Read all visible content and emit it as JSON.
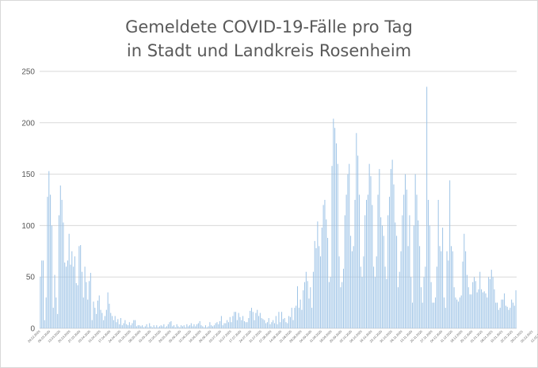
{
  "chart_data": {
    "type": "bar",
    "title": "Gemeldete COVID-19-Fälle pro Tag",
    "subtitle": "in Stadt und Landkreis Rosenheim",
    "xlabel": "",
    "ylabel": "",
    "ylim": [
      0,
      250
    ],
    "yticks": [
      0,
      50,
      100,
      150,
      200,
      250
    ],
    "grid": true,
    "bar_color": "#9dc3e6",
    "grid_color": "#d9d9d9",
    "text_color": "#595959",
    "x_tick_labels": [
      "29.02.2020",
      "06.03.2020",
      "13.03.2020",
      "20.03.2020",
      "27.03.2020",
      "03.04.2020",
      "10.04.2020",
      "17.04.2020",
      "24.04.2020",
      "01.05.2020",
      "08.05.2020",
      "15.05.2020",
      "22.05.2020",
      "29.05.2020",
      "05.06.2020",
      "12.06.2020",
      "19.06.2020",
      "26.06.2020",
      "03.07.2020",
      "10.07.2020",
      "17.07.2020",
      "24.07.2020",
      "31.07.2020",
      "07.08.2020",
      "14.08.2020",
      "21.08.2020",
      "28.08.2020",
      "04.09.2020",
      "11.09.2020",
      "18.09.2020",
      "25.09.2020",
      "02.10.2020",
      "09.10.2020",
      "16.10.2020",
      "23.10.2020",
      "30.10.2020",
      "06.11.2020",
      "13.11.2020",
      "20.11.2020",
      "27.11.2020",
      "04.12.2020",
      "11.12.2020",
      "18.12.2020",
      "25.12.2020",
      "01.01.2021",
      "08.01.2021",
      "15.01.2021",
      "22.01.2021",
      "29.01.2021",
      "05.02.2021",
      "12.02.2021",
      "19.02.2021"
    ],
    "values": [
      50,
      66,
      66,
      8,
      30,
      128,
      153,
      130,
      100,
      20,
      52,
      30,
      14,
      110,
      139,
      125,
      103,
      64,
      60,
      66,
      92,
      62,
      75,
      60,
      70,
      44,
      42,
      80,
      81,
      55,
      30,
      60,
      45,
      28,
      46,
      54,
      8,
      26,
      20,
      14,
      27,
      32,
      18,
      15,
      8,
      12,
      18,
      35,
      24,
      15,
      12,
      8,
      12,
      6,
      9,
      4,
      10,
      3,
      5,
      8,
      4,
      3,
      6,
      3,
      5,
      8,
      8,
      2,
      3,
      3,
      2,
      3,
      1,
      2,
      4,
      1,
      5,
      2,
      1,
      3,
      1,
      3,
      1,
      2,
      3,
      2,
      4,
      1,
      2,
      4,
      6,
      7,
      2,
      3,
      1,
      4,
      2,
      1,
      3,
      2,
      3,
      1,
      4,
      2,
      3,
      5,
      2,
      4,
      2,
      4,
      5,
      7,
      3,
      2,
      1,
      3,
      1,
      2,
      6,
      3,
      2,
      3,
      5,
      6,
      4,
      7,
      12,
      3,
      5,
      5,
      8,
      6,
      11,
      6,
      12,
      16,
      16,
      8,
      15,
      11,
      8,
      12,
      7,
      6,
      6,
      10,
      17,
      20,
      16,
      8,
      15,
      18,
      12,
      15,
      10,
      9,
      8,
      5,
      6,
      10,
      4,
      6,
      8,
      5,
      12,
      4,
      16,
      6,
      16,
      9,
      10,
      6,
      5,
      12,
      11,
      20,
      8,
      20,
      22,
      41,
      20,
      28,
      18,
      37,
      45,
      55,
      46,
      29,
      40,
      20,
      55,
      85,
      78,
      104,
      80,
      70,
      98,
      120,
      125,
      106,
      88,
      45,
      50,
      158,
      204,
      195,
      180,
      160,
      70,
      40,
      45,
      58,
      110,
      130,
      150,
      160,
      90,
      75,
      80,
      125,
      190,
      168,
      130,
      60,
      50,
      70,
      110,
      125,
      130,
      160,
      148,
      120,
      60,
      50,
      70,
      130,
      155,
      108,
      100,
      90,
      60,
      48,
      110,
      128,
      155,
      164,
      140,
      103,
      90,
      40,
      55,
      75,
      110,
      130,
      150,
      135,
      80,
      110,
      50,
      25,
      100,
      150,
      130,
      105,
      80,
      40,
      25,
      50,
      60,
      235,
      125,
      100,
      45,
      25,
      25,
      30,
      60,
      125,
      80,
      75,
      98,
      30,
      20,
      75,
      66,
      144,
      80,
      75,
      40,
      30,
      28,
      26,
      30,
      32,
      65,
      92,
      75,
      52,
      40,
      33,
      33,
      45,
      50,
      46,
      35,
      38,
      55,
      38,
      35,
      36,
      34,
      30,
      50,
      48,
      57,
      50,
      38,
      25,
      25,
      18,
      20,
      28,
      28,
      34,
      22,
      21,
      18,
      20,
      28,
      25,
      22,
      37
    ]
  }
}
